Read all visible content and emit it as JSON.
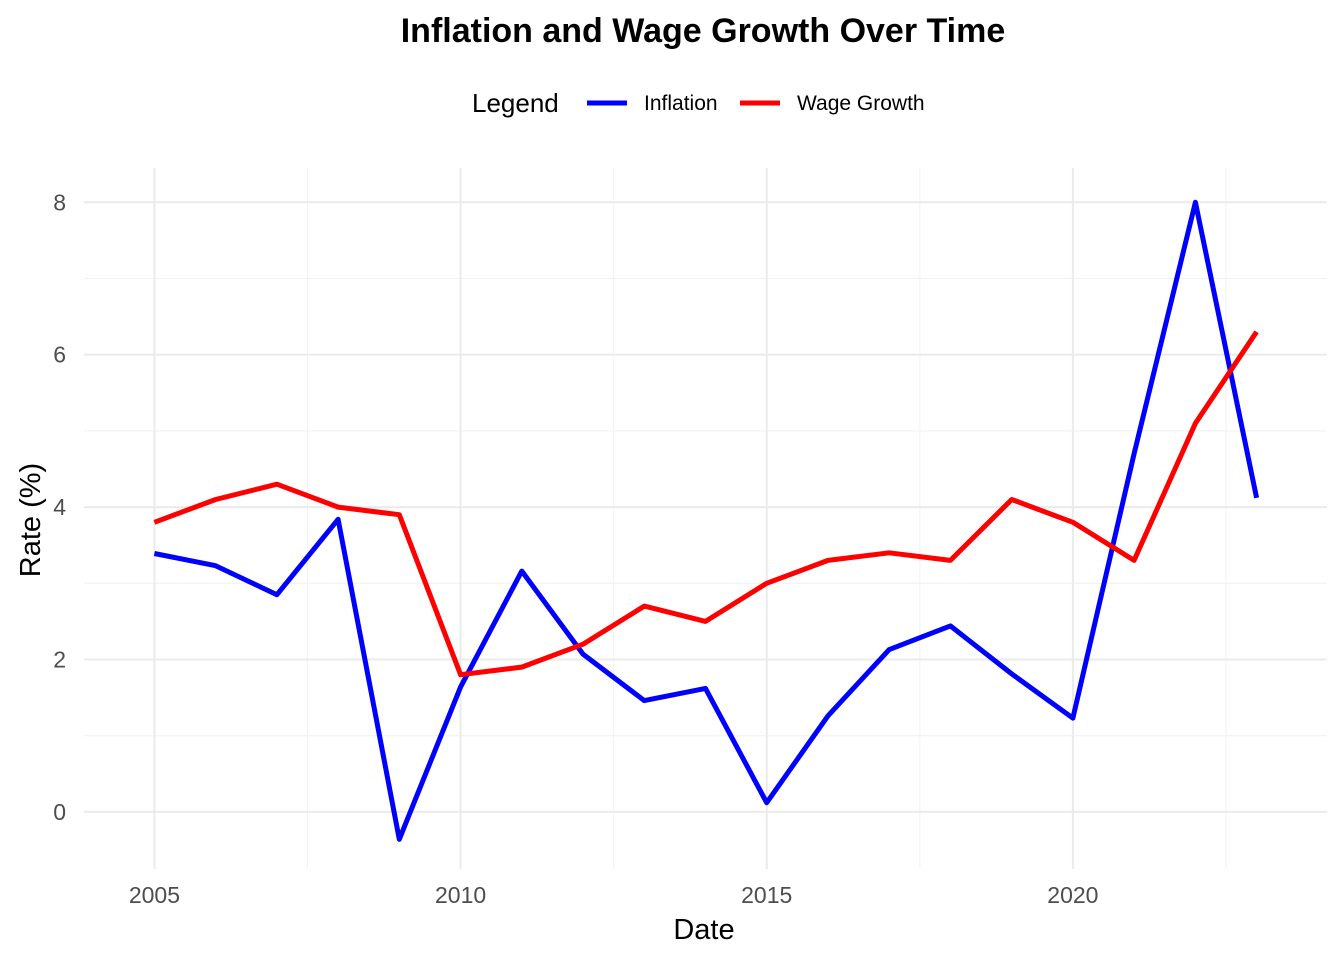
{
  "chart_data": {
    "type": "line",
    "title": "Inflation and Wage Growth Over Time",
    "xlabel": "Date",
    "ylabel": "Rate (%)",
    "legend": {
      "title": "Legend",
      "position": "top"
    },
    "x": [
      2005,
      2006,
      2007,
      2008,
      2009,
      2010,
      2011,
      2012,
      2013,
      2014,
      2015,
      2016,
      2017,
      2018,
      2019,
      2020,
      2021,
      2022,
      2023
    ],
    "xlim": [
      2003.85,
      2024.15
    ],
    "ylim": [
      -0.75,
      8.45
    ],
    "xticks": [
      2005,
      2010,
      2015,
      2020
    ],
    "yticks": [
      0,
      2,
      4,
      6,
      8
    ],
    "grid": true,
    "series": [
      {
        "name": "Inflation",
        "color": "#0000ff",
        "values": [
          3.39,
          3.23,
          2.85,
          3.84,
          -0.36,
          1.64,
          3.16,
          2.07,
          1.46,
          1.62,
          0.12,
          1.26,
          2.13,
          2.44,
          1.81,
          1.23,
          4.7,
          8.0,
          4.12
        ]
      },
      {
        "name": "Wage Growth",
        "color": "#ff0000",
        "values": [
          3.8,
          4.1,
          4.3,
          4.0,
          3.9,
          1.8,
          1.9,
          2.2,
          2.7,
          2.5,
          3.0,
          3.3,
          3.4,
          3.3,
          4.1,
          3.8,
          3.3,
          5.1,
          6.3
        ]
      }
    ]
  }
}
